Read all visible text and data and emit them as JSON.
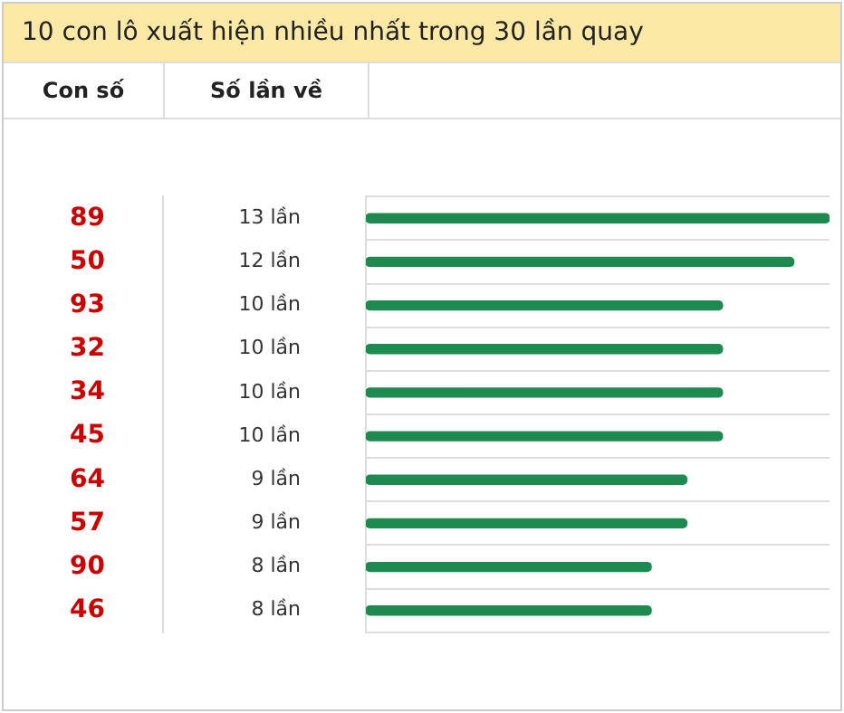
{
  "chart_data": {
    "type": "bar",
    "orientation": "horizontal",
    "title": "10 con lô xuất hiện nhiều nhất trong 30 lần quay",
    "ylabel": "Con số",
    "xlabel": "Số lần về",
    "categories": [
      "89",
      "50",
      "93",
      "32",
      "34",
      "45",
      "64",
      "57",
      "90",
      "46"
    ],
    "values": [
      13,
      12,
      10,
      10,
      10,
      10,
      9,
      9,
      8,
      8
    ],
    "value_labels": [
      "13 lần",
      "12 lần",
      "10 lần",
      "10 lần",
      "10 lần",
      "10 lần",
      "9 lần",
      "9 lần",
      "8 lần",
      "8 lần"
    ],
    "color": "#1e8a4f",
    "grid": "y",
    "legend": false
  }
}
